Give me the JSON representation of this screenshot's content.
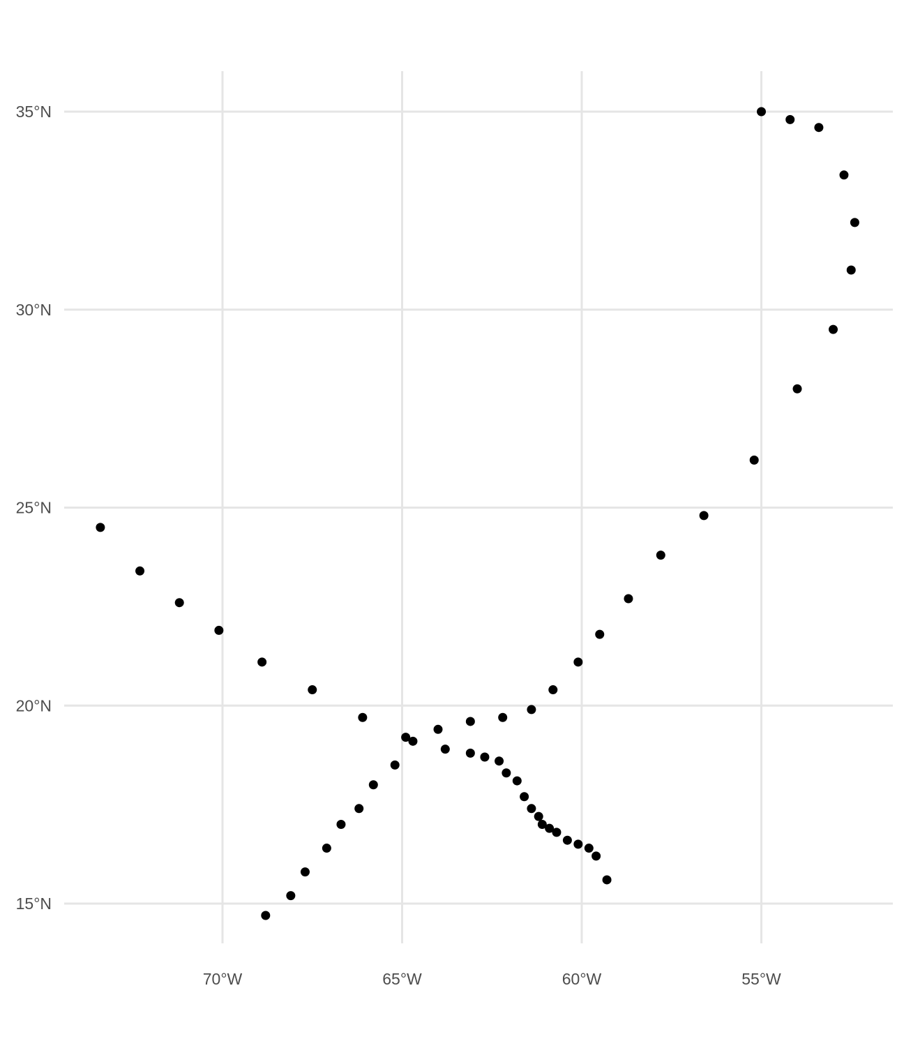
{
  "chart_data": {
    "type": "scatter",
    "title": "",
    "xlabel": "",
    "ylabel": "",
    "xlim": [
      -73.4,
      -52.3
    ],
    "ylim": [
      13.8,
      36.0
    ],
    "x_ticks": [
      {
        "value": -70,
        "label": "70°W"
      },
      {
        "value": -65,
        "label": "65°W"
      },
      {
        "value": -60,
        "label": "60°W"
      },
      {
        "value": -55,
        "label": "55°W"
      }
    ],
    "y_ticks": [
      {
        "value": 35,
        "label": "35°N"
      },
      {
        "value": 30,
        "label": "30°N"
      },
      {
        "value": 25,
        "label": "25°N"
      },
      {
        "value": 20,
        "label": "20°N"
      },
      {
        "value": 15,
        "label": "15°N"
      }
    ],
    "grid": true,
    "point_color": "#000000",
    "points": [
      {
        "x": -73.4,
        "y": 24.5
      },
      {
        "x": -72.3,
        "y": 23.4
      },
      {
        "x": -71.2,
        "y": 22.6
      },
      {
        "x": -70.1,
        "y": 21.9
      },
      {
        "x": -68.9,
        "y": 21.1
      },
      {
        "x": -67.5,
        "y": 20.4
      },
      {
        "x": -66.1,
        "y": 19.7
      },
      {
        "x": -64.9,
        "y": 19.2
      },
      {
        "x": -64.7,
        "y": 19.1
      },
      {
        "x": -63.8,
        "y": 18.9
      },
      {
        "x": -63.1,
        "y": 18.8
      },
      {
        "x": -62.7,
        "y": 18.7
      },
      {
        "x": -62.3,
        "y": 18.6
      },
      {
        "x": -62.1,
        "y": 18.3
      },
      {
        "x": -61.8,
        "y": 18.1
      },
      {
        "x": -61.6,
        "y": 17.7
      },
      {
        "x": -61.4,
        "y": 17.4
      },
      {
        "x": -61.2,
        "y": 17.2
      },
      {
        "x": -61.1,
        "y": 17.0
      },
      {
        "x": -60.9,
        "y": 16.9
      },
      {
        "x": -60.7,
        "y": 16.8
      },
      {
        "x": -60.4,
        "y": 16.6
      },
      {
        "x": -60.1,
        "y": 16.5
      },
      {
        "x": -59.8,
        "y": 16.4
      },
      {
        "x": -59.6,
        "y": 16.2
      },
      {
        "x": -59.3,
        "y": 15.6
      },
      {
        "x": -68.8,
        "y": 14.7
      },
      {
        "x": -68.1,
        "y": 15.2
      },
      {
        "x": -67.7,
        "y": 15.8
      },
      {
        "x": -67.1,
        "y": 16.4
      },
      {
        "x": -66.7,
        "y": 17.0
      },
      {
        "x": -66.2,
        "y": 17.4
      },
      {
        "x": -65.8,
        "y": 18.0
      },
      {
        "x": -65.2,
        "y": 18.5
      },
      {
        "x": -64.0,
        "y": 19.4
      },
      {
        "x": -63.1,
        "y": 19.6
      },
      {
        "x": -62.2,
        "y": 19.7
      },
      {
        "x": -61.4,
        "y": 19.9
      },
      {
        "x": -60.8,
        "y": 20.4
      },
      {
        "x": -60.1,
        "y": 21.1
      },
      {
        "x": -59.5,
        "y": 21.8
      },
      {
        "x": -58.7,
        "y": 22.7
      },
      {
        "x": -57.8,
        "y": 23.8
      },
      {
        "x": -56.6,
        "y": 24.8
      },
      {
        "x": -55.2,
        "y": 26.2
      },
      {
        "x": -54.0,
        "y": 28.0
      },
      {
        "x": -53.0,
        "y": 29.5
      },
      {
        "x": -52.5,
        "y": 31.0
      },
      {
        "x": -52.4,
        "y": 32.2
      },
      {
        "x": -52.7,
        "y": 33.4
      },
      {
        "x": -53.4,
        "y": 34.6
      },
      {
        "x": -54.2,
        "y": 34.8
      },
      {
        "x": -55.0,
        "y": 35.0
      }
    ]
  }
}
